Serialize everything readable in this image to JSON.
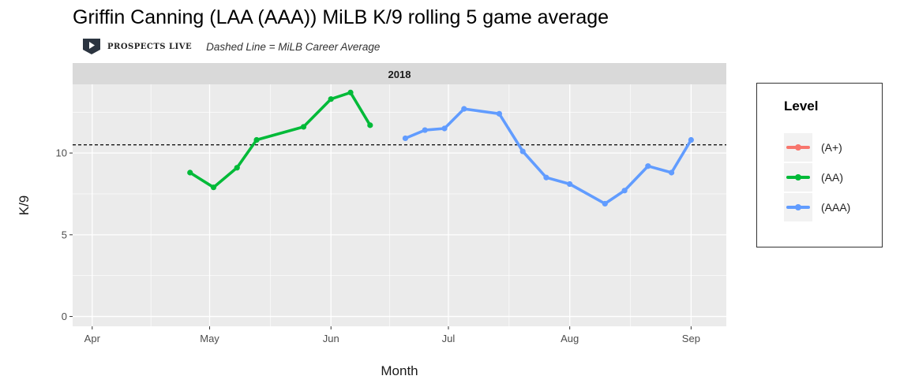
{
  "title": "Griffin Canning (LAA (AAA)) MiLB K/9 rolling 5 game average",
  "brand": {
    "name": "PROSPECTS LIVE",
    "note": "Dashed Line = MiLB Career Average",
    "icon": "play-shield-icon"
  },
  "colors": {
    "panel_bg": "#ebebeb",
    "strip_bg": "#d9d9d9",
    "grid": "#ffffff",
    "A+": "#f8766d",
    "AA": "#00ba38",
    "AAA": "#619cff"
  },
  "chart_data": {
    "type": "line",
    "facet_label": "2018",
    "xlabel": "Month",
    "ylabel": "K/9",
    "x_ticks": [
      "Apr",
      "May",
      "Jun",
      "Jul",
      "Aug",
      "Sep"
    ],
    "y_ticks": [
      0,
      5,
      10
    ],
    "xlim": [
      "2018-03-27",
      "2018-09-10"
    ],
    "ylim": [
      -0.6,
      14.2
    ],
    "career_average": 10.5,
    "legend": {
      "title": "Level",
      "position": "right",
      "items": [
        "(A+)",
        "(AA)",
        "(AAA)"
      ]
    },
    "series": [
      {
        "name": "(A+)",
        "color": "#f8766d",
        "points": []
      },
      {
        "name": "(AA)",
        "color": "#00ba38",
        "points": [
          {
            "x": "2018-04-26",
            "y": 8.8
          },
          {
            "x": "2018-05-02",
            "y": 7.9
          },
          {
            "x": "2018-05-08",
            "y": 9.1
          },
          {
            "x": "2018-05-13",
            "y": 10.8
          },
          {
            "x": "2018-05-25",
            "y": 11.6
          },
          {
            "x": "2018-06-01",
            "y": 13.3
          },
          {
            "x": "2018-06-06",
            "y": 13.7
          },
          {
            "x": "2018-06-11",
            "y": 11.7
          }
        ]
      },
      {
        "name": "(AAA)",
        "color": "#619cff",
        "points": [
          {
            "x": "2018-06-20",
            "y": 10.9
          },
          {
            "x": "2018-06-25",
            "y": 11.4
          },
          {
            "x": "2018-06-30",
            "y": 11.5
          },
          {
            "x": "2018-07-05",
            "y": 12.7
          },
          {
            "x": "2018-07-14",
            "y": 12.4
          },
          {
            "x": "2018-07-20",
            "y": 10.1
          },
          {
            "x": "2018-07-26",
            "y": 8.5
          },
          {
            "x": "2018-08-01",
            "y": 8.1
          },
          {
            "x": "2018-08-10",
            "y": 6.9
          },
          {
            "x": "2018-08-15",
            "y": 7.7
          },
          {
            "x": "2018-08-21",
            "y": 9.2
          },
          {
            "x": "2018-08-27",
            "y": 8.8
          },
          {
            "x": "2018-09-01",
            "y": 10.8
          }
        ]
      }
    ]
  }
}
